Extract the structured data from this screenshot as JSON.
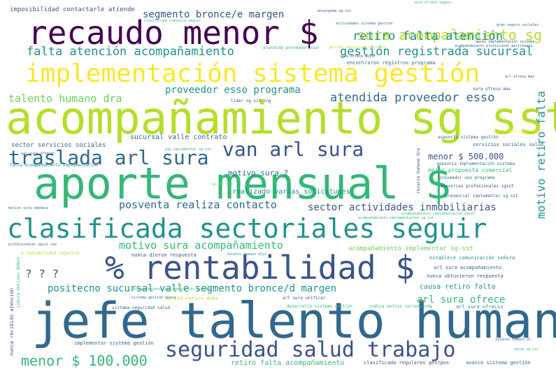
{
  "palette": {
    "dark_purple": "#440154",
    "indigo": "#3b528b",
    "steel": "#31688e",
    "teal": "#21918c",
    "green": "#35b779",
    "light_green": "#6ece58",
    "lime": "#b5de2b",
    "yellow": "#fde725"
  },
  "words": [
    {
      "text": "jefe talento humano",
      "color": "#31688e"
    },
    {
      "text": "acompañamiento sg sst",
      "color": "#b5de2b"
    },
    {
      "text": "aporte mensual $",
      "color": "#35b779"
    },
    {
      "text": "recaudo menor $",
      "color": "#440154"
    },
    {
      "text": "% rentabilidad $",
      "color": "#3b528b"
    },
    {
      "text": "clasificada sectoriales seguir",
      "color": "#21918c"
    },
    {
      "text": "implementación sistema gestión",
      "color": "#fde725"
    },
    {
      "text": "seguridad salud trabajo",
      "color": "#3b528b"
    },
    {
      "text": "van arl sura",
      "color": "#3b528b"
    },
    {
      "text": "traslada arl sura",
      "color": "#31688e"
    },
    {
      "text": "sura acompañamiento sg",
      "color": "#b5de2b"
    },
    {
      "text": "menor $ 100.000",
      "color": "#35b779"
    },
    {
      "text": "falta atención acompañamiento",
      "color": "#21918c"
    },
    {
      "text": "gestión registrada sucursal",
      "color": "#21918c"
    },
    {
      "text": "retiro falta atención",
      "color": "#21918c"
    },
    {
      "text": "segmento bronce/e margen",
      "color": "#3b528b"
    },
    {
      "text": "imposibilidad contactarle atiende",
      "color": "#3b528b"
    },
    {
      "text": "atendida proveedor esso",
      "color": "#31688e"
    },
    {
      "text": "proveedor esso programa",
      "color": "#21918c"
    },
    {
      "text": "talento humano dra",
      "color": "#6ece58"
    },
    {
      "text": "posventa realiza contacto",
      "color": "#31688e"
    },
    {
      "text": "sector actividades inmobiliarias",
      "color": "#3b528b"
    },
    {
      "text": "motivo sura acompañamiento",
      "color": "#35b779"
    },
    {
      "text": "positecno sucursal valle segmento bronce/d margen",
      "color": "#21918c"
    },
    {
      "text": "motivo retiro falta",
      "color": "#21918c"
    },
    {
      "text": "arl sura ofrece",
      "color": "#35b779"
    },
    {
      "text": "? ? ?",
      "color": "#3b528b"
    },
    {
      "text": "sucursal valle contrato",
      "color": "#31688e"
    },
    {
      "text": "motivo sura ?",
      "color": "#31688e"
    },
    {
      "text": "menor $ 500.000",
      "color": "#3b528b"
    },
    {
      "text": "sector servicios sociales",
      "color": "#31688e"
    },
    {
      "text": "realizado varias solicitudes",
      "color": "#21918c"
    },
    {
      "text": "retiro falta acompañamiento",
      "color": "#35b779"
    },
    {
      "text": "causa retiro falta",
      "color": "#21918c"
    },
    {
      "text": "mejor propuesta comercial",
      "color": "#35b779"
    },
    {
      "text": "acompañamiento implementar sg-sst",
      "color": "#6ece58"
    },
    {
      "text": "establece comunicación señora",
      "color": "#21918c"
    },
    {
      "text": "arl sura acompañamiento",
      "color": "#31688e"
    },
    {
      "text": "nunca obtuvieron respuesta",
      "color": "#3b528b"
    },
    {
      "text": "encontraron registros programa",
      "color": "#31688e"
    },
    {
      "text": "asesoria sistema gestión",
      "color": "#31688e"
    },
    {
      "text": "servicios sociales salud",
      "color": "#31688e"
    },
    {
      "text": "desarrollo sistema gestión",
      "color": "#35b779"
    },
    {
      "text": "implementar sistema gestión",
      "color": "#31688e"
    },
    {
      "text": "clasificada regulares gestpos",
      "color": "#3b528b"
    },
    {
      "text": "avance sistema gestión",
      "color": "#31688e"
    },
    {
      "text": "acompañamiento implementación sg-sst",
      "color": "#35b779"
    },
    {
      "text": "nunca dieron respuesta",
      "color": "#3b528b"
    },
    {
      "text": "presencial implementar sg-sst",
      "color": "#31688e"
    },
    {
      "text": "proveedor uso programa",
      "color": "#31688e"
    },
    {
      "text": "asesorias profesionales sgsst",
      "color": "#3b528b"
    },
    {
      "text": "nunca recibido atención",
      "color": "#3b528b"
    },
    {
      "text": "sistema seguridad salud",
      "color": "#31688e"
    },
    {
      "text": "indica motivo corresponde",
      "color": "#35b779"
    },
    {
      "text": "arl sura ofrecio",
      "color": "#21918c"
    },
    {
      "text": "profesionales sgsst sas",
      "color": "#31688e"
    },
    {
      "text": "pyp implementar sg-sst",
      "color": "#35b779"
    },
    {
      "text": "atendida proveedor uso",
      "color": "#35b779"
    },
    {
      "text": "arl sura unificar",
      "color": "#3b528b"
    },
    {
      "text": "acompañamiento implementación sistema",
      "color": "#35b779"
    },
    {
      "text": "motivo retiro debe",
      "color": "#b5de2b"
    },
    {
      "text": "sistema gestión nunca",
      "color": "#31688e"
    },
    {
      "text": "arl sura ofrecen",
      "color": "#3b528b"
    },
    {
      "text": "clasificada comunica seguir",
      "color": "#35b779"
    },
    {
      "text": "actividades sistema gestión",
      "color": "#31688e"
    },
    {
      "text": "sura ofrece mejor",
      "color": "#3b528b"
    },
    {
      "text": "falta acompañamiento implementación",
      "color": "#21918c"
    },
    {
      "text": "talento humano dijo",
      "color": "#21918c"
    },
    {
      "text": "acompañamiento implementación sgsst",
      "color": "#35b779"
    },
    {
      "text": "recurso humano dra",
      "color": "#3b528b"
    },
    {
      "text": "lider sg-sst ing",
      "color": "#31688e"
    },
    {
      "text": "apoyo implementación sistema",
      "color": "#3b528b"
    },
    {
      "text": "gestión registrada sucursal",
      "color": "#b5de2b"
    },
    {
      "text": "sura ofrece mas",
      "color": "#3b528b"
    },
    {
      "text": "asesoria implementación sistema",
      "color": "#31688e"
    },
    {
      "text": "indica motivos deben",
      "color": "#35b779"
    },
    {
      "text": "$ rentabilidad negativo",
      "color": "#b5de2b"
    },
    {
      "text": "sura ofrece seguir",
      "color": "#35b779"
    },
    {
      "text": "arl ofrece mas",
      "color": "#3b528b"
    },
    {
      "text": "salud sg-sst",
      "color": "#35b779"
    },
    {
      "text": "talento humano dr.",
      "color": "#31688e"
    },
    {
      "text": "sg-sst ing",
      "color": "#6ece58"
    },
    {
      "text": "motivo sura obedece",
      "color": "#31688e"
    },
    {
      "text": "profesional post venta",
      "color": "#fde725"
    },
    {
      "text": "acompañamiento profesional pertinente",
      "color": "#31688e"
    },
    {
      "text": "encargada sg sst",
      "color": "#3b528b"
    },
    {
      "text": "gran seguro sociales",
      "color": "#31688e"
    }
  ]
}
